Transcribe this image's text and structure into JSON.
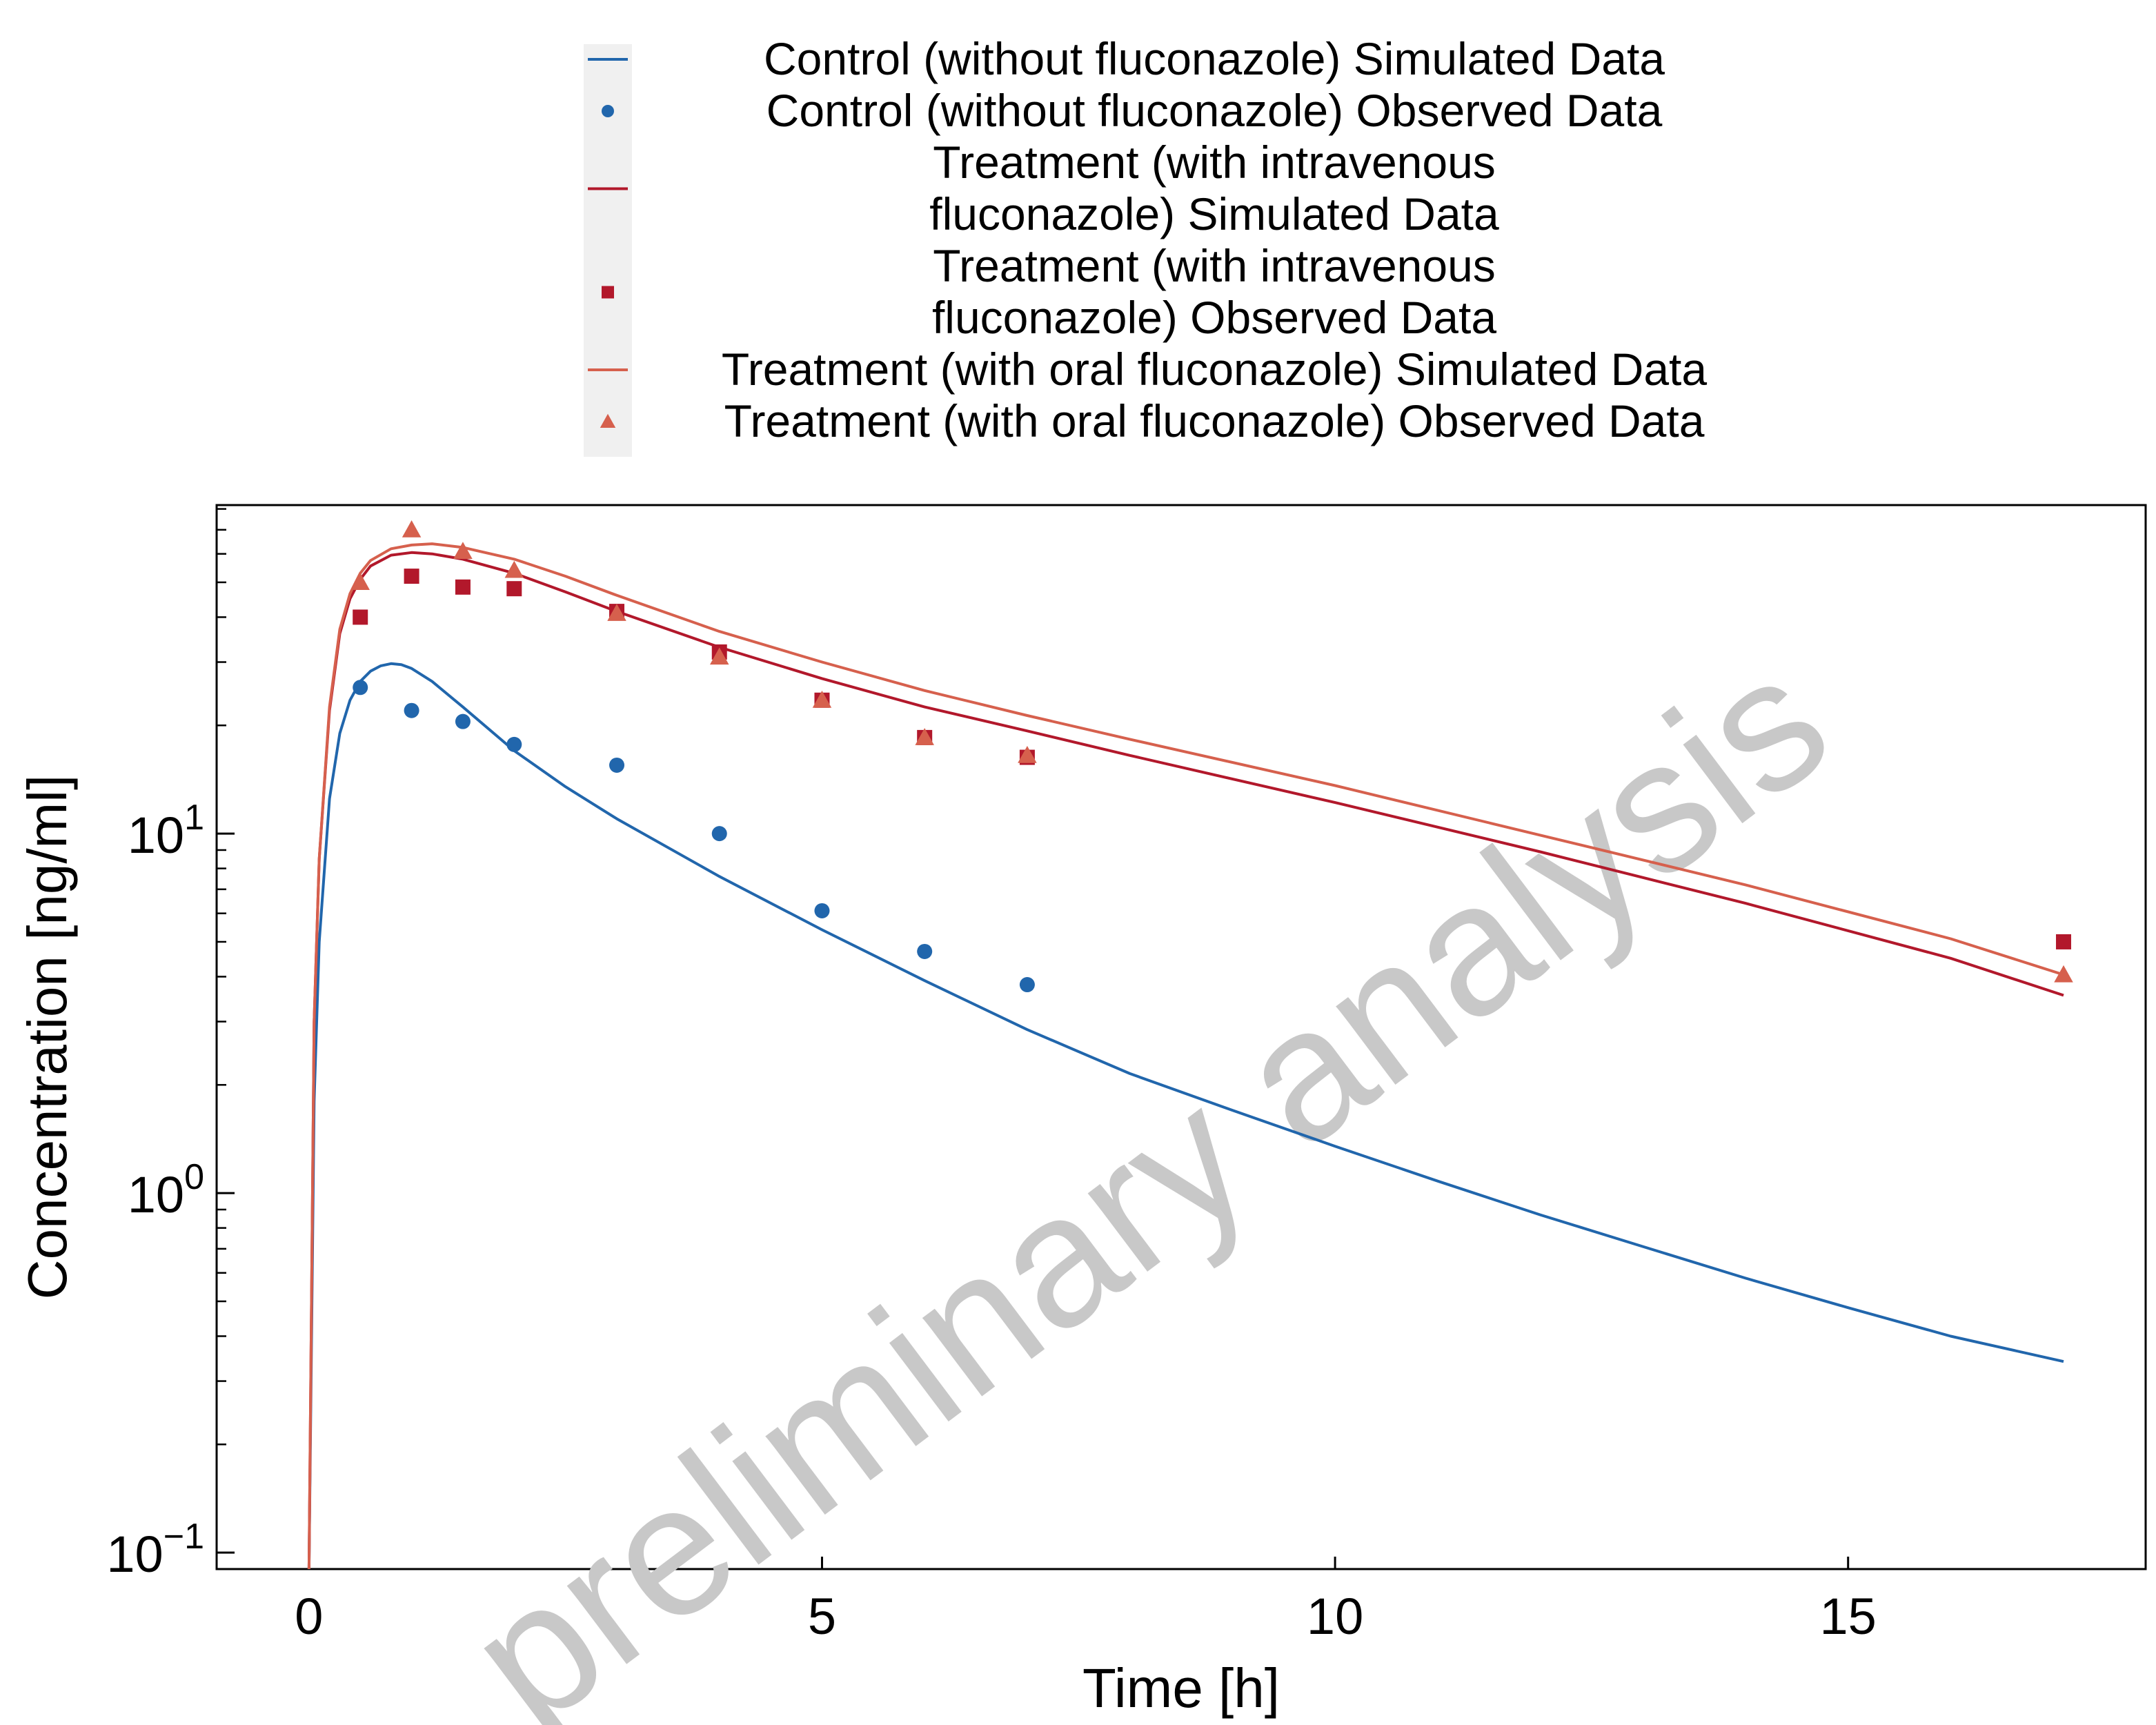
{
  "watermark": "preliminary analysis",
  "chart_data": {
    "type": "line",
    "title": "",
    "xlabel": "Time [h]",
    "ylabel": "Concentration [ng/ml]",
    "xlim": [
      -0.9,
      17.9
    ],
    "ylim": [
      0.09,
      82
    ],
    "yscale": "log",
    "x_ticks": [
      0,
      5,
      10,
      15
    ],
    "x_tick_labels": [
      "0",
      "5",
      "10",
      "15"
    ],
    "y_major_ticks": [
      0.1,
      1,
      10
    ],
    "y_tick_labels": [
      {
        "base": "10",
        "exp": "−1"
      },
      {
        "base": "10",
        "exp": "0"
      },
      {
        "base": "10",
        "exp": "1"
      }
    ],
    "grid": false,
    "legend_position": "top",
    "series": [
      {
        "name": "Control (without fluconazole) Simulated Data",
        "kind": "line",
        "color": "#2166ac",
        "x": [
          0,
          0.05,
          0.1,
          0.2,
          0.3,
          0.4,
          0.5,
          0.6,
          0.7,
          0.8,
          0.9,
          1.0,
          1.2,
          1.5,
          2,
          2.5,
          3,
          4,
          5,
          6,
          7,
          8,
          9,
          10,
          11,
          12,
          13,
          14,
          15,
          16,
          17.1
        ],
        "y": [
          0.09,
          1.8,
          5.0,
          12.5,
          19.0,
          23.5,
          26.5,
          28.3,
          29.3,
          29.7,
          29.5,
          28.8,
          26.5,
          22.5,
          17.0,
          13.5,
          11.0,
          7.6,
          5.4,
          3.9,
          2.85,
          2.15,
          1.7,
          1.35,
          1.08,
          0.87,
          0.71,
          0.58,
          0.48,
          0.4,
          0.34
        ]
      },
      {
        "name": "Control (without fluconazole) Observed Data",
        "kind": "scatter",
        "marker": "circle",
        "color": "#2166ac",
        "x": [
          0.5,
          1,
          1.5,
          2,
          3,
          4,
          5,
          6,
          7
        ],
        "y": [
          25.5,
          22,
          20.5,
          17.7,
          15.5,
          10,
          6.1,
          4.7,
          3.8
        ]
      },
      {
        "name": "Treatment (with intravenous fluconazole) Simulated Data",
        "kind": "line",
        "color": "#b2182b",
        "x": [
          0,
          0.05,
          0.1,
          0.2,
          0.3,
          0.4,
          0.5,
          0.6,
          0.8,
          1.0,
          1.2,
          1.5,
          2,
          2.5,
          3,
          4,
          5,
          6,
          7,
          8,
          10,
          12,
          14,
          16,
          17.1
        ],
        "y": [
          0.09,
          3.0,
          8.5,
          22.0,
          36.0,
          45.0,
          51.0,
          55.5,
          59.5,
          60.5,
          60.0,
          58.0,
          53.0,
          47.0,
          41.5,
          33.0,
          27.0,
          22.5,
          19.3,
          16.5,
          12.2,
          8.9,
          6.4,
          4.5,
          3.55
        ]
      },
      {
        "name": "Treatment (with intravenous fluconazole) Observed Data",
        "kind": "scatter",
        "marker": "square",
        "color": "#b2182b",
        "x": [
          0.5,
          1,
          1.5,
          2,
          3,
          4,
          5,
          6,
          7,
          17.1
        ],
        "y": [
          40,
          52,
          48.5,
          48,
          41.5,
          32,
          23.5,
          18.5,
          16.3,
          5
        ]
      },
      {
        "name": "Treatment (with oral fluconazole) Simulated Data",
        "kind": "line",
        "color": "#d6604d",
        "x": [
          0,
          0.05,
          0.1,
          0.2,
          0.3,
          0.4,
          0.5,
          0.6,
          0.8,
          1.0,
          1.2,
          1.5,
          2,
          2.5,
          3,
          4,
          5,
          6,
          7,
          8,
          10,
          12,
          14,
          16,
          17.1
        ],
        "y": [
          0.09,
          3.0,
          8.5,
          22.5,
          37.0,
          46.5,
          53.0,
          57.5,
          62.0,
          63.5,
          64.0,
          62.5,
          58.0,
          52.0,
          46.0,
          36.5,
          30.0,
          25.0,
          21.3,
          18.3,
          13.6,
          9.9,
          7.2,
          5.1,
          4.05
        ]
      },
      {
        "name": "Treatment (with oral fluconazole) Observed Data",
        "kind": "scatter",
        "marker": "triangle",
        "color": "#d6604d",
        "x": [
          0.5,
          1,
          1.5,
          2,
          3,
          4,
          5,
          6,
          7,
          17.1
        ],
        "y": [
          50,
          70,
          61,
          54,
          41,
          31,
          23.5,
          18.5,
          16.5,
          4.05
        ]
      }
    ],
    "legend": [
      {
        "lines": [
          "Control (without fluconazole) Simulated Data"
        ],
        "kind": "line",
        "color": "#2166ac"
      },
      {
        "lines": [
          "Control (without fluconazole) Observed Data"
        ],
        "kind": "circle",
        "color": "#2166ac"
      },
      {
        "lines": [
          "Treatment (with intravenous",
          "fluconazole) Simulated Data"
        ],
        "kind": "line",
        "color": "#b2182b"
      },
      {
        "lines": [
          "Treatment (with intravenous",
          "fluconazole) Observed Data"
        ],
        "kind": "square",
        "color": "#b2182b"
      },
      {
        "lines": [
          "Treatment (with oral fluconazole) Simulated Data"
        ],
        "kind": "line",
        "color": "#d6604d"
      },
      {
        "lines": [
          "Treatment (with oral fluconazole) Observed Data"
        ],
        "kind": "triangle",
        "color": "#d6604d"
      }
    ]
  }
}
